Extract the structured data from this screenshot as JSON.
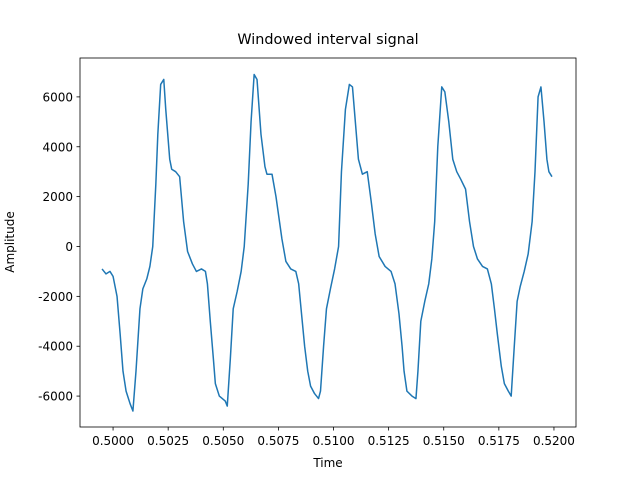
{
  "chart_data": {
    "type": "line",
    "title": "Windowed interval signal",
    "xlabel": "Time",
    "ylabel": "Amplitude",
    "xlim": [
      0.4985,
      0.521
    ],
    "ylim": [
      -7240,
      7560
    ],
    "xticks": [
      {
        "value": 0.5,
        "label": "0.5000"
      },
      {
        "value": 0.5025,
        "label": "0.5025"
      },
      {
        "value": 0.505,
        "label": "0.5050"
      },
      {
        "value": 0.5075,
        "label": "0.5075"
      },
      {
        "value": 0.51,
        "label": "0.5100"
      },
      {
        "value": 0.5125,
        "label": "0.5125"
      },
      {
        "value": 0.515,
        "label": "0.5150"
      },
      {
        "value": 0.5175,
        "label": "0.5175"
      },
      {
        "value": 0.52,
        "label": "0.5200"
      }
    ],
    "yticks": [
      -6000,
      -4000,
      -2000,
      0,
      2000,
      4000,
      6000
    ],
    "grid": false,
    "series": [
      {
        "color": "#1f77b4",
        "x": [
          0.4995,
          0.49968,
          0.49986,
          0.5,
          0.50018,
          0.50032,
          0.50045,
          0.50059,
          0.50077,
          0.5009,
          0.50104,
          0.50122,
          0.50135,
          0.50153,
          0.50167,
          0.5018,
          0.50194,
          0.50203,
          0.50216,
          0.5023,
          0.50239,
          0.50257,
          0.50266,
          0.50284,
          0.50302,
          0.5032,
          0.50338,
          0.5036,
          0.50378,
          0.50401,
          0.50419,
          0.50428,
          0.50441,
          0.50455,
          0.50464,
          0.50482,
          0.50509,
          0.50518,
          0.50532,
          0.50545,
          0.50563,
          0.50581,
          0.50595,
          0.50613,
          0.50626,
          0.5064,
          0.50653,
          0.50671,
          0.50689,
          0.50698,
          0.50721,
          0.50739,
          0.50766,
          0.50784,
          0.50806,
          0.50829,
          0.50842,
          0.50856,
          0.50869,
          0.50883,
          0.50896,
          0.50914,
          0.50932,
          0.50941,
          0.50955,
          0.50968,
          0.50986,
          0.51005,
          0.51023,
          0.51036,
          0.51054,
          0.51072,
          0.51086,
          0.51099,
          0.51113,
          0.51131,
          0.51153,
          0.51171,
          0.51189,
          0.51207,
          0.51234,
          0.51261,
          0.51279,
          0.51297,
          0.51311,
          0.5132,
          0.51333,
          0.51356,
          0.51374,
          0.51383,
          0.51396,
          0.51414,
          0.51432,
          0.51446,
          0.51459,
          0.51473,
          0.51491,
          0.51505,
          0.51523,
          0.51541,
          0.51559,
          0.51577,
          0.51599,
          0.51617,
          0.51635,
          0.51653,
          0.51676,
          0.51698,
          0.51716,
          0.5173,
          0.51743,
          0.51761,
          0.51775,
          0.51793,
          0.51806,
          0.5182,
          0.51833,
          0.51847,
          0.51865,
          0.51883,
          0.51901,
          0.51914,
          0.51928,
          0.51941,
          0.51955,
          0.51968,
          0.51977,
          0.51991
        ],
        "values": [
          -900,
          -1100,
          -1000,
          -1200,
          -2000,
          -3500,
          -5000,
          -5800,
          -6300,
          -6600,
          -5000,
          -2500,
          -1700,
          -1300,
          -800,
          0,
          2500,
          4500,
          6500,
          6700,
          5500,
          3500,
          3100,
          3000,
          2800,
          1000,
          -200,
          -700,
          -1000,
          -900,
          -1000,
          -1500,
          -3000,
          -4500,
          -5500,
          -6000,
          -6200,
          -6400,
          -4500,
          -2500,
          -1800,
          -1000,
          0,
          2500,
          5000,
          6900,
          6700,
          4500,
          3200,
          2900,
          2900,
          2000,
          300,
          -600,
          -900,
          -1000,
          -1500,
          -2800,
          -4000,
          -5000,
          -5600,
          -5900,
          -6100,
          -5800,
          -4000,
          -2500,
          -1700,
          -900,
          0,
          3000,
          5500,
          6500,
          6400,
          5000,
          3500,
          2900,
          3000,
          1800,
          500,
          -400,
          -800,
          -1000,
          -1500,
          -2700,
          -4000,
          -5000,
          -5800,
          -6000,
          -6100,
          -5000,
          -3000,
          -2200,
          -1500,
          -500,
          1000,
          4000,
          6400,
          6200,
          5000,
          3500,
          3000,
          2700,
          2300,
          1000,
          0,
          -500,
          -800,
          -900,
          -1500,
          -2500,
          -3500,
          -4800,
          -5500,
          -5800,
          -6000,
          -4000,
          -2200,
          -1600,
          -1000,
          -300,
          1000,
          3000,
          6000,
          6400,
          5000,
          3500,
          3000,
          2800
        ]
      }
    ]
  }
}
